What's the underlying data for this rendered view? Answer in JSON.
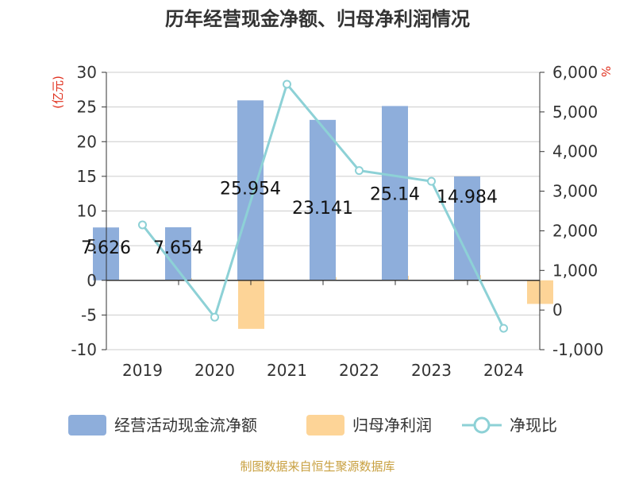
{
  "chart_data": {
    "type": "bar+line",
    "title": "历年经营现金净额、归母净利润情况",
    "source": "制图数据来自恒生聚源数据库",
    "categories": [
      "2019",
      "2020",
      "2021",
      "2022",
      "2023",
      "2024"
    ],
    "y_left": {
      "unit": "(亿元)",
      "min": -10,
      "max": 30,
      "ticks": [
        30,
        25,
        20,
        15,
        10,
        5,
        0,
        -5,
        -10
      ]
    },
    "y_right": {
      "unit": "%",
      "min": -1000,
      "max": 6000,
      "ticks": [
        "6,000",
        "5,000",
        "4,000",
        "3,000",
        "2,000",
        "1,000",
        "0",
        "-1,000"
      ]
    },
    "series": [
      {
        "name": "经营活动现金流净额",
        "type": "bar",
        "axis": "left",
        "color": "#8eaedb",
        "values": [
          7.626,
          7.654,
          25.954,
          23.141,
          25.14,
          14.984
        ],
        "labels": [
          "7.626",
          "7.654",
          "25.954",
          "23.141",
          "25.14",
          "14.984"
        ]
      },
      {
        "name": "归母净利润",
        "type": "bar",
        "axis": "left",
        "color": "#fdd497",
        "values": [
          0.3,
          -7.0,
          0.45,
          0.65,
          0.75,
          -3.4
        ]
      },
      {
        "name": "净现比",
        "type": "line",
        "axis": "right",
        "color": "#8dd1d6",
        "values": [
          2150,
          -180,
          5700,
          3520,
          3250,
          -460
        ]
      }
    ],
    "grid": true,
    "legend": "bottom"
  }
}
